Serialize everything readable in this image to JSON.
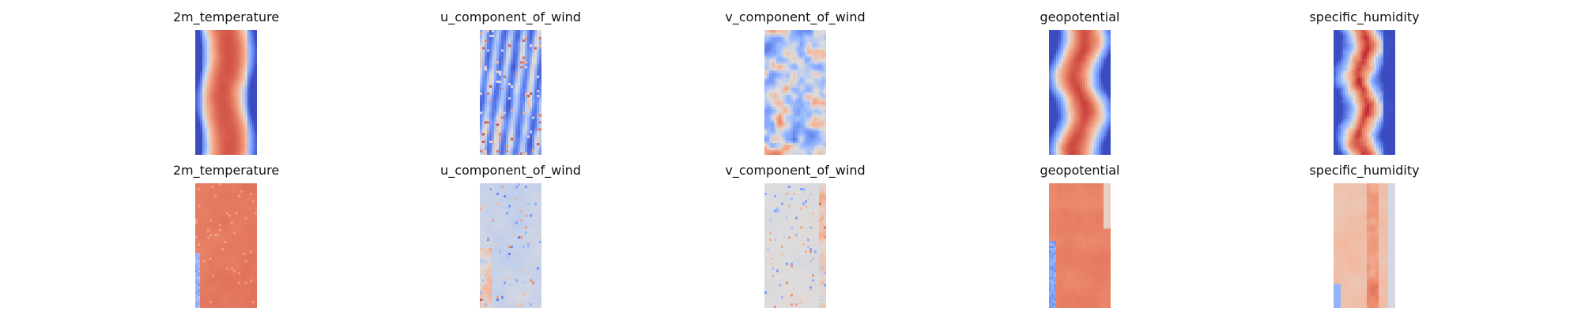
{
  "chart_data": [
    {
      "type": "heatmap",
      "row": 1,
      "title": "2m_temperature",
      "colormap": "coolwarm",
      "pattern": "temperature",
      "axes": "off"
    },
    {
      "type": "heatmap",
      "row": 1,
      "title": "u_component_of_wind",
      "colormap": "coolwarm",
      "pattern": "wind_u",
      "axes": "off"
    },
    {
      "type": "heatmap",
      "row": 1,
      "title": "v_component_of_wind",
      "colormap": "coolwarm",
      "pattern": "wind_v",
      "axes": "off"
    },
    {
      "type": "heatmap",
      "row": 1,
      "title": "geopotential",
      "colormap": "coolwarm",
      "pattern": "geopotential",
      "axes": "off"
    },
    {
      "type": "heatmap",
      "row": 1,
      "title": "specific_humidity",
      "colormap": "coolwarm",
      "pattern": "humidity",
      "axes": "off"
    },
    {
      "type": "heatmap",
      "row": 2,
      "title": "2m_temperature",
      "colormap": "coolwarm",
      "pattern": "temperature_pred",
      "axes": "off"
    },
    {
      "type": "heatmap",
      "row": 2,
      "title": "u_component_of_wind",
      "colormap": "coolwarm",
      "pattern": "wind_u_pred",
      "axes": "off"
    },
    {
      "type": "heatmap",
      "row": 2,
      "title": "v_component_of_wind",
      "colormap": "coolwarm",
      "pattern": "wind_v_pred",
      "axes": "off"
    },
    {
      "type": "heatmap",
      "row": 2,
      "title": "geopotential",
      "colormap": "coolwarm",
      "pattern": "geopotential_pred",
      "axes": "off"
    },
    {
      "type": "heatmap",
      "row": 2,
      "title": "specific_humidity",
      "colormap": "coolwarm",
      "pattern": "humidity_pred",
      "axes": "off"
    }
  ]
}
